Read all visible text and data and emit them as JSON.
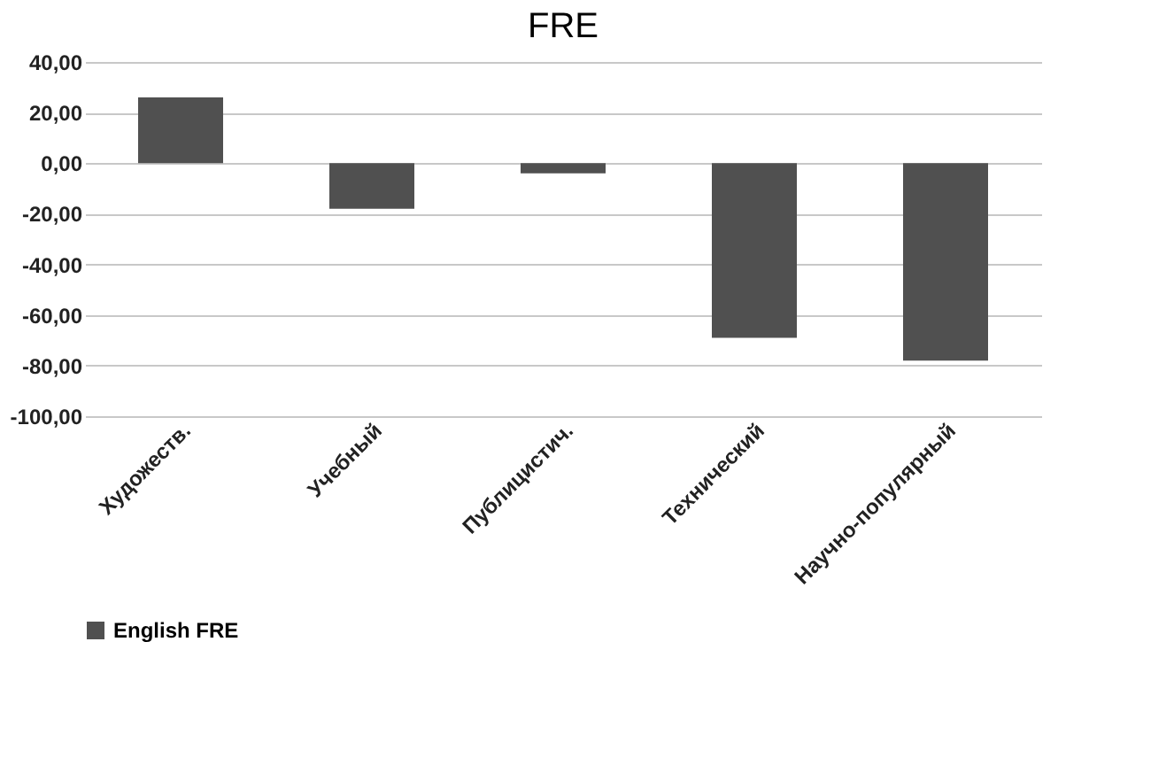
{
  "chart_data": {
    "type": "bar",
    "title": "FRE",
    "categories": [
      "Художеств.",
      "Учебный",
      "Публицистич.",
      "Технический",
      "Научно-популярный"
    ],
    "series": [
      {
        "name": "English FRE",
        "color": "#505050",
        "values": [
          26,
          -18,
          -4,
          -69,
          -78
        ]
      }
    ],
    "ylim": [
      -100,
      40
    ],
    "yticks": [
      {
        "value": -100,
        "label": "-100,00"
      },
      {
        "value": -80,
        "label": "-80,00"
      },
      {
        "value": -60,
        "label": "-60,00"
      },
      {
        "value": -40,
        "label": "-40,00"
      },
      {
        "value": -20,
        "label": "-20,00"
      },
      {
        "value": 0,
        "label": "0,00"
      },
      {
        "value": 20,
        "label": "20,00"
      },
      {
        "value": 40,
        "label": "40,00"
      }
    ],
    "grid": "y",
    "legend": "bottom"
  }
}
